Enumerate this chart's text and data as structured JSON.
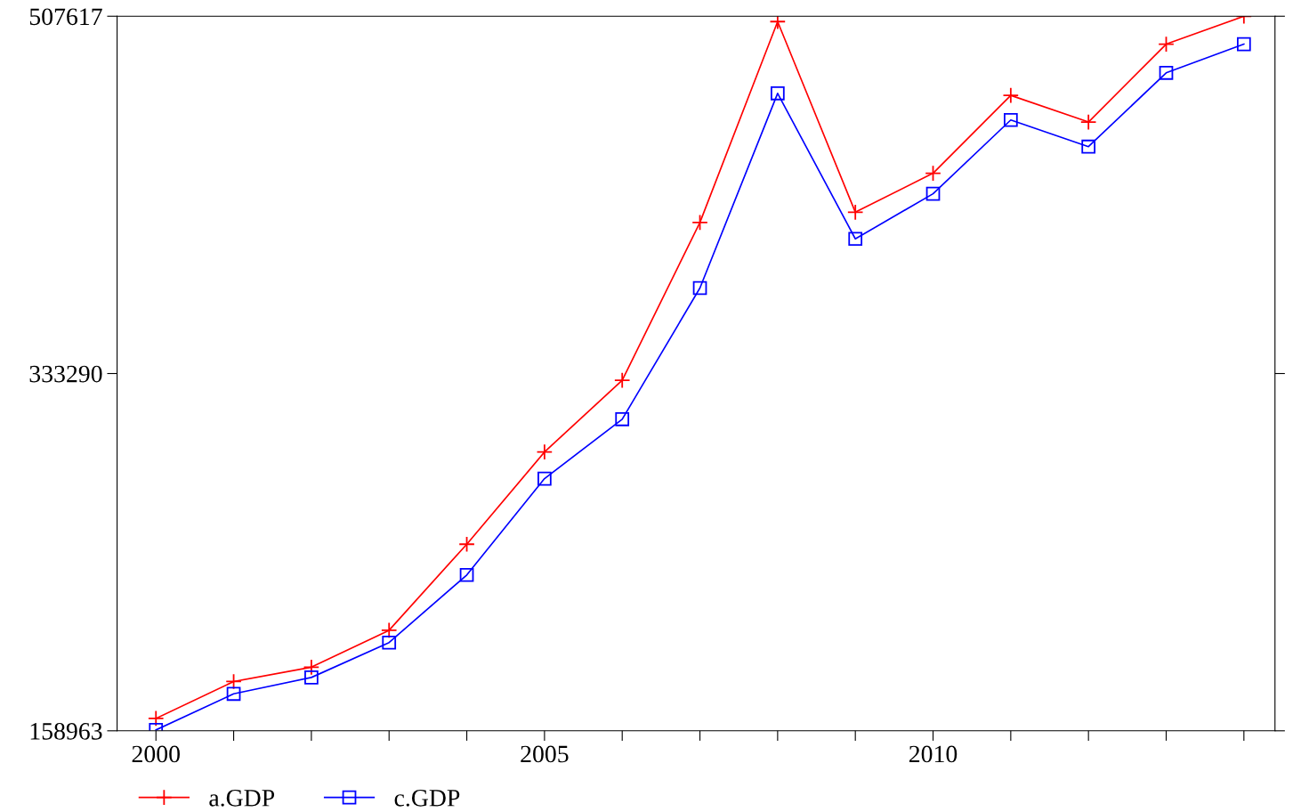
{
  "chart_data": {
    "type": "line",
    "x": [
      2000,
      2001,
      2002,
      2003,
      2004,
      2005,
      2006,
      2007,
      2008,
      2009,
      2010,
      2011,
      2012,
      2013,
      2014
    ],
    "series": [
      {
        "name": "a.GDP",
        "color": "#ff0000",
        "marker": "cross",
        "values": [
          165000,
          183000,
          190000,
          208000,
          250000,
          295000,
          330000,
          407000,
          505000,
          412000,
          431000,
          469000,
          456000,
          494000,
          507617
        ]
      },
      {
        "name": "c.GDP",
        "color": "#0000ff",
        "marker": "square",
        "values": [
          159400,
          177000,
          185000,
          202000,
          235000,
          282000,
          311000,
          375000,
          470000,
          399000,
          421000,
          457000,
          444000,
          480000,
          494000
        ]
      }
    ],
    "xlim": [
      1999.5,
      2014.4
    ],
    "xticks": [
      2000,
      {
        "value": 2001,
        "label": null
      },
      {
        "value": 2002,
        "label": null
      },
      {
        "value": 2003,
        "label": null
      },
      {
        "value": 2004,
        "label": null
      },
      2005,
      {
        "value": 2006,
        "label": null
      },
      {
        "value": 2007,
        "label": null
      },
      {
        "value": 2008,
        "label": null
      },
      {
        "value": 2009,
        "label": null
      },
      2010,
      {
        "value": 2011,
        "label": null
      },
      {
        "value": 2012,
        "label": null
      },
      {
        "value": 2013,
        "label": null
      },
      {
        "value": 2014,
        "label": null
      }
    ],
    "ylim": [
      158963,
      507617
    ],
    "yticks": [
      158963,
      333290,
      507617
    ],
    "grid": false,
    "legend": "bottom left",
    "line_style": "solid"
  }
}
